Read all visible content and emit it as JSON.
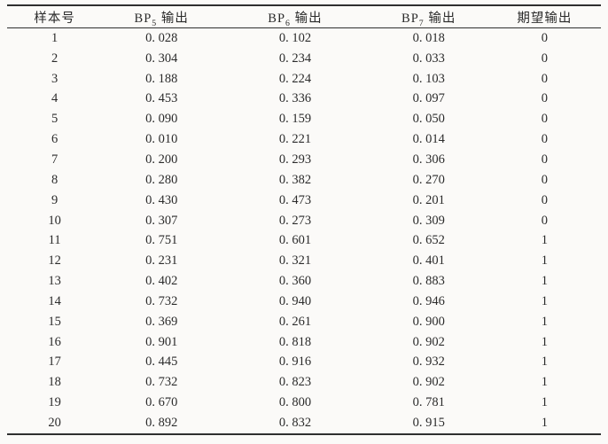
{
  "table": {
    "headers": [
      {
        "base": "样本号",
        "sub": "",
        "rest": ""
      },
      {
        "base": "BP",
        "sub": "5",
        "rest": " 输出"
      },
      {
        "base": "BP",
        "sub": "6",
        "rest": " 输出"
      },
      {
        "base": "BP",
        "sub": "7",
        "rest": " 输出"
      },
      {
        "base": "期望输出",
        "sub": "",
        "rest": ""
      }
    ],
    "rows": [
      [
        "1",
        "0. 028",
        "0. 102",
        "0. 018",
        "0"
      ],
      [
        "2",
        "0. 304",
        "0. 234",
        "0. 033",
        "0"
      ],
      [
        "3",
        "0. 188",
        "0. 224",
        "0. 103",
        "0"
      ],
      [
        "4",
        "0. 453",
        "0. 336",
        "0. 097",
        "0"
      ],
      [
        "5",
        "0. 090",
        "0. 159",
        "0. 050",
        "0"
      ],
      [
        "6",
        "0. 010",
        "0. 221",
        "0. 014",
        "0"
      ],
      [
        "7",
        "0. 200",
        "0. 293",
        "0. 306",
        "0"
      ],
      [
        "8",
        "0. 280",
        "0. 382",
        "0. 270",
        "0"
      ],
      [
        "9",
        "0. 430",
        "0. 473",
        "0. 201",
        "0"
      ],
      [
        "10",
        "0. 307",
        "0. 273",
        "0. 309",
        "0"
      ],
      [
        "11",
        "0. 751",
        "0. 601",
        "0. 652",
        "1"
      ],
      [
        "12",
        "0. 231",
        "0. 321",
        "0. 401",
        "1"
      ],
      [
        "13",
        "0. 402",
        "0. 360",
        "0. 883",
        "1"
      ],
      [
        "14",
        "0. 732",
        "0. 940",
        "0. 946",
        "1"
      ],
      [
        "15",
        "0. 369",
        "0. 261",
        "0. 900",
        "1"
      ],
      [
        "16",
        "0. 901",
        "0. 818",
        "0. 902",
        "1"
      ],
      [
        "17",
        "0. 445",
        "0. 916",
        "0. 932",
        "1"
      ],
      [
        "18",
        "0. 732",
        "0. 823",
        "0. 902",
        "1"
      ],
      [
        "19",
        "0. 670",
        "0. 800",
        "0. 781",
        "1"
      ],
      [
        "20",
        "0. 892",
        "0. 832",
        "0. 915",
        "1"
      ]
    ],
    "colors": {
      "rule": "#2f2f2f",
      "text": "#2b2b2b",
      "paper_background": "#fbfaf8"
    }
  }
}
